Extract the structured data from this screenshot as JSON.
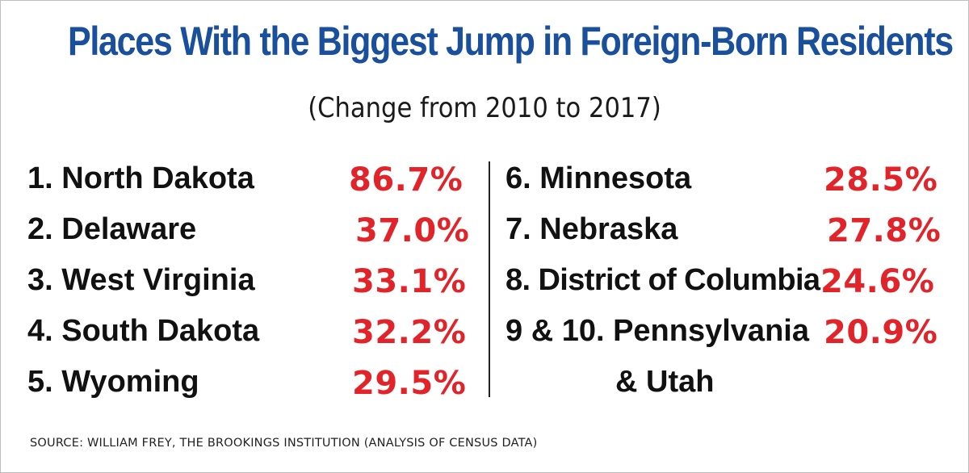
{
  "title": "Places With the Biggest Jump in Foreign-Born Residents",
  "subtitle": "(Change from 2010 to 2017)",
  "left_column": [
    {
      "rank_name": "1. North Dakota",
      "pct": "86.7%"
    },
    {
      "rank_name": "2. Delaware",
      "pct": "37.0%"
    },
    {
      "rank_name": "3. West Virginia",
      "pct": "33.1%"
    },
    {
      "rank_name": "4. South Dakota",
      "pct": "32.2%"
    },
    {
      "rank_name": "5. Wyoming",
      "pct": "29.5%"
    }
  ],
  "right_column": [
    {
      "rank_name": "6. Minnesota",
      "pct": "28.5%"
    },
    {
      "rank_name": "7. Nebraska",
      "pct": "27.8%"
    },
    {
      "rank_name": "8. District of Columbia",
      "pct": "24.6%"
    },
    {
      "rank_name": "9 & 10. Pennsylvania",
      "pct": "20.9%"
    },
    {
      "rank_name": "& Utah",
      "pct": ""
    }
  ],
  "source": "SOURCE: WILLIAM FREY, THE BROOKINGS INSTITUTION (ANALYSIS OF CENSUS DATA)",
  "colors": {
    "title": "#1a4f9c",
    "percent": "#e0242a",
    "text": "#111111"
  }
}
